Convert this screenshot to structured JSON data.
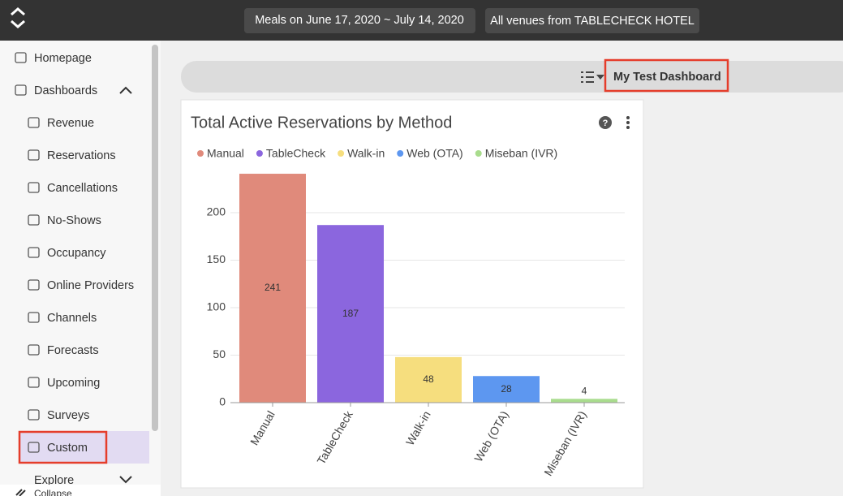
{
  "top_bar": {
    "filters": [
      "Meals on June 17, 2020 ~ July 14, 2020",
      "All venues from TABLECHECK HOTEL"
    ]
  },
  "sidebar": {
    "items": [
      "Homepage",
      "Dashboards"
    ],
    "sub_items": [
      "Revenue",
      "Reservations",
      "Cancellations",
      "No-Shows",
      "Occupancy",
      "Online Providers",
      "Channels",
      "Forecasts",
      "Upcoming",
      "Surveys",
      "Custom"
    ],
    "more": "Explore",
    "collapse": "Collapse"
  },
  "dashboard": {
    "name": "My Test Dashboard"
  },
  "chart_data": {
    "type": "bar",
    "title": "Total Active Reservations by Method",
    "categories": [
      "Manual",
      "TableCheck",
      "Walk-in",
      "Web (OTA)",
      "Miseban (IVR)"
    ],
    "values": [
      241,
      187,
      48,
      28,
      4
    ],
    "colors": [
      "#e08a7b",
      "#8b66de",
      "#f6de7e",
      "#5d97f0",
      "#a9dc8d"
    ],
    "ylim": [
      0,
      250
    ],
    "yticks": [
      0,
      50,
      100,
      150,
      200
    ],
    "grid": true,
    "legend": "top-left"
  }
}
